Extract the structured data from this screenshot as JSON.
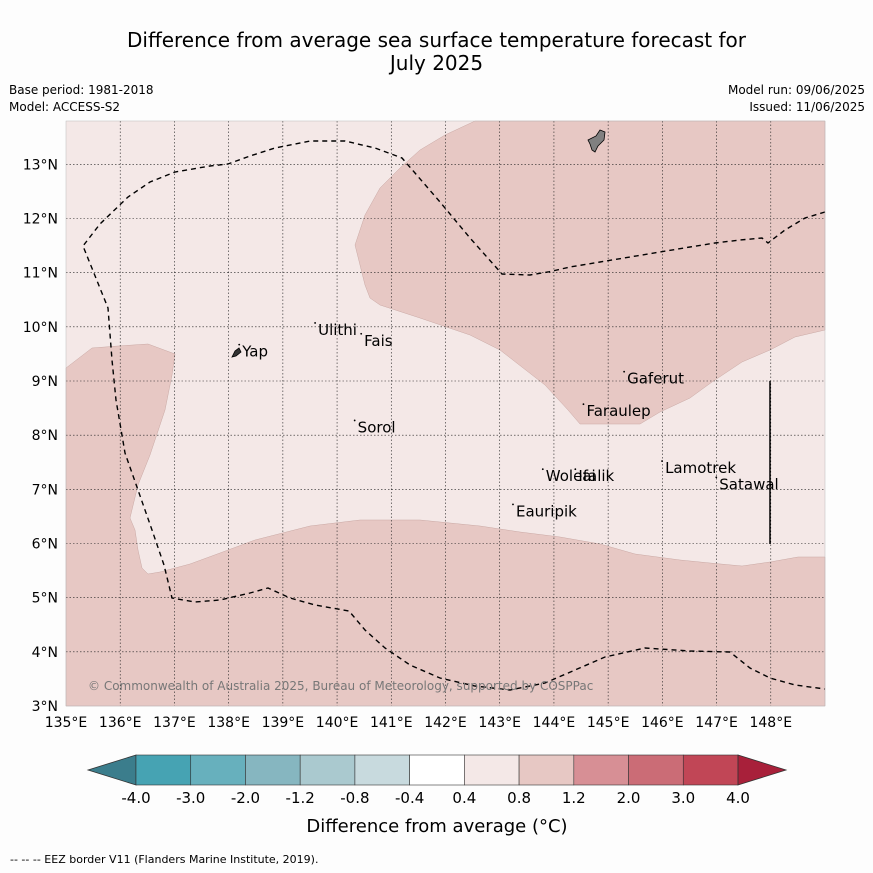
{
  "header": {
    "title_line1": "Difference from average sea surface temperature forecast for",
    "title_line2": "July 2025",
    "base_period": "Base period: 1981-2018",
    "model": "Model: ACCESS-S2",
    "model_run": "Model run: 09/06/2025",
    "issued": "Issued: 11/06/2025"
  },
  "map": {
    "lat_labels": [
      "3°N",
      "4°N",
      "5°N",
      "6°N",
      "7°N",
      "8°N",
      "9°N",
      "10°N",
      "11°N",
      "12°N",
      "13°N"
    ],
    "lon_labels": [
      "135°E",
      "136°E",
      "137°E",
      "138°E",
      "139°E",
      "140°E",
      "141°E",
      "142°E",
      "143°E",
      "144°E",
      "145°E",
      "146°E",
      "147°E",
      "148°E"
    ],
    "places": [
      {
        "name": "Yap",
        "lon": 138.25,
        "lat": 9.45
      },
      {
        "name": "Ulithi",
        "lon": 139.65,
        "lat": 9.85
      },
      {
        "name": "Fais",
        "lon": 140.5,
        "lat": 9.65
      },
      {
        "name": "Gaferut",
        "lon": 145.35,
        "lat": 8.95
      },
      {
        "name": "Faraulep",
        "lon": 144.6,
        "lat": 8.35
      },
      {
        "name": "Sorol",
        "lon": 140.38,
        "lat": 8.05
      },
      {
        "name": "Woleai",
        "lon": 143.85,
        "lat": 7.15
      },
      {
        "name": "Ifalik",
        "lon": 144.45,
        "lat": 7.15
      },
      {
        "name": "Lamotrek",
        "lon": 146.05,
        "lat": 7.3
      },
      {
        "name": "Satawal",
        "lon": 147.05,
        "lat": 7.0
      },
      {
        "name": "Eauripik",
        "lon": 143.3,
        "lat": 6.5
      }
    ],
    "copyright": "© Commonwealth of Australia 2025, Bureau of Meteorology, supported by COSPPac",
    "colors": {
      "warm_0_4_to_0_8": "#f4e8e7",
      "warm_0_8_to_1_2": "#e7c8c4",
      "land": "#808080",
      "eez_border": "#000000"
    }
  },
  "colorbar": {
    "ticks": [
      "-4.0",
      "-3.0",
      "-2.0",
      "-1.2",
      "-0.8",
      "-0.4",
      "0.4",
      "0.8",
      "1.2",
      "2.0",
      "3.0",
      "4.0"
    ],
    "colors": [
      "#3b7d8c",
      "#46a3b3",
      "#67b0bd",
      "#86b6c0",
      "#aac9cf",
      "#c8dade",
      "#ffffff",
      "#f4e8e7",
      "#e7c8c4",
      "#d78f95",
      "#cb6c76",
      "#c14656",
      "#a8203a"
    ],
    "label": "Difference from average (°C)"
  },
  "footer": {
    "legend": "--  --  -- EEZ border V11 (Flanders Marine Institute, 2019)."
  }
}
